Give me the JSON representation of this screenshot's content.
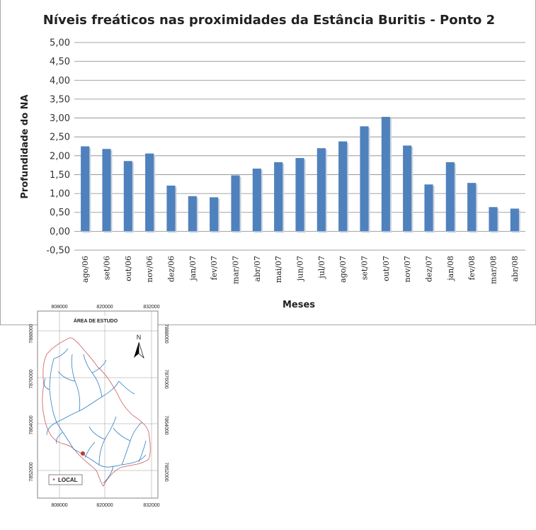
{
  "chart_data": {
    "type": "bar",
    "title": "Níveis freáticos nas proximidades da Estância Buritis - Ponto 2",
    "xlabel": "Meses",
    "ylabel": "Profundidade do NA",
    "ylim": [
      -0.5,
      5.0
    ],
    "ytick_values": [
      -0.5,
      0,
      0.5,
      1.0,
      1.5,
      2.0,
      2.5,
      3.0,
      3.5,
      4.0,
      4.5,
      5.0
    ],
    "ytick_labels": [
      "-0,50",
      "0,00",
      "0,50",
      "1,00",
      "1,50",
      "2,00",
      "2,50",
      "3,00",
      "3,50",
      "4,00",
      "4,50",
      "5,00"
    ],
    "grid": true,
    "categories": [
      "ago/06",
      "set/06",
      "out/06",
      "nov/06",
      "dez/06",
      "jan/07",
      "fev/07",
      "mar/07",
      "abr/07",
      "mai/07",
      "jun/07",
      "jul/07",
      "ago/07",
      "set/07",
      "out/07",
      "nov/07",
      "dez/07",
      "jan/08",
      "fev/08",
      "mar/08",
      "abr/08"
    ],
    "values": [
      2.25,
      2.18,
      1.86,
      2.06,
      1.21,
      0.93,
      0.9,
      1.48,
      1.66,
      1.83,
      1.94,
      2.2,
      2.38,
      2.78,
      3.03,
      2.27,
      1.24,
      1.83,
      1.28,
      0.64,
      0.6
    ],
    "bar_color": "#4f81bd"
  },
  "map": {
    "title": "ÁREA DE ESTUDO",
    "x_ticks": [
      "808000",
      "820000",
      "832000"
    ],
    "y_ticks": [
      "7888000",
      "7876000",
      "7864000",
      "7852000"
    ],
    "north_label": "N",
    "legend_label": "LOCAL",
    "legend_symbol": "*"
  }
}
